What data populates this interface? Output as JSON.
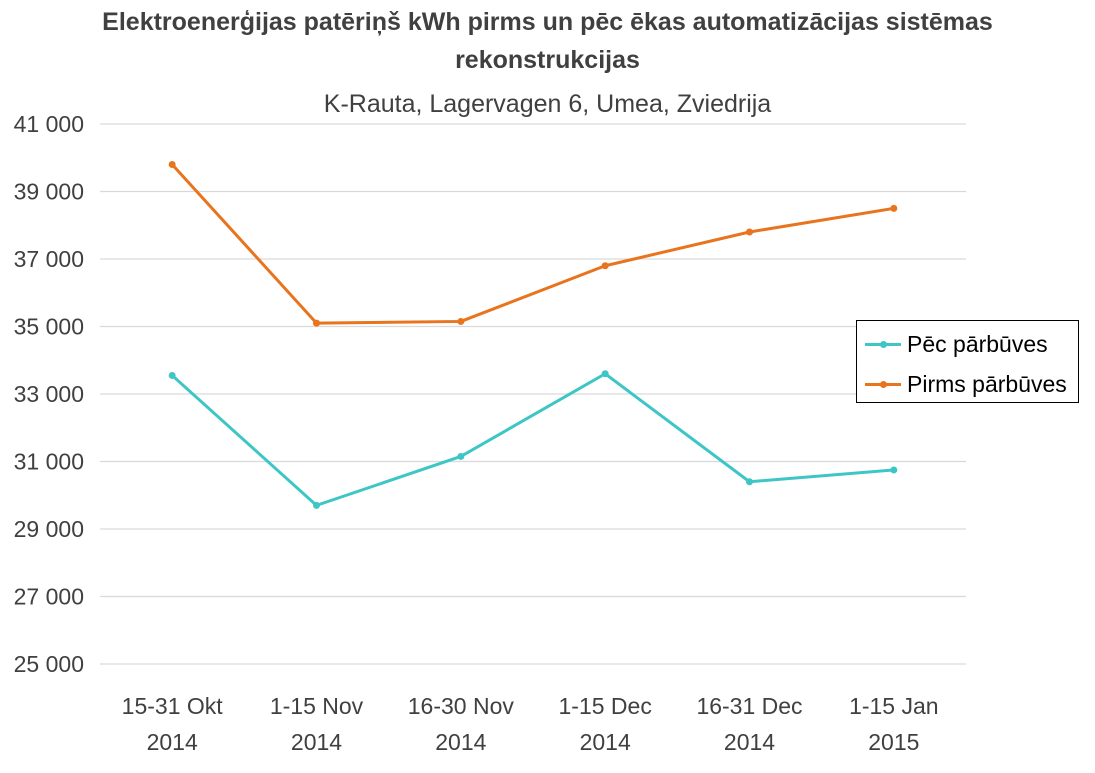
{
  "chart_data": {
    "type": "line",
    "title": "Elektroenerģijas patēriņš kWh pirms un pēc ēkas automatizācijas sistēmas rekonstrukcijas",
    "title_line1": "Elektroenerģijas patēriņš kWh pirms un pēc ēkas automatizācijas sistēmas",
    "title_line2": "rekonstrukcijas",
    "subtitle": "K-Rauta, Lagervagen 6, Umea, Zviedrija",
    "categories": [
      [
        "15-31 Okt",
        "2014"
      ],
      [
        "1-15 Nov",
        "2014"
      ],
      [
        "16-30 Nov",
        "2014"
      ],
      [
        "1-15 Dec",
        "2014"
      ],
      [
        "16-31 Dec",
        "2014"
      ],
      [
        "1-15 Jan",
        "2015"
      ]
    ],
    "ylim": [
      25000,
      41000
    ],
    "yticks": [
      25000,
      27000,
      29000,
      31000,
      33000,
      35000,
      37000,
      39000,
      41000
    ],
    "ytick_labels": [
      "25 000",
      "27 000",
      "29 000",
      "31 000",
      "33 000",
      "35 000",
      "37 000",
      "39 000",
      "41 000"
    ],
    "grid": true,
    "legend_position": "right",
    "series": [
      {
        "name": "Pēc pārbūves",
        "color": "#3ec6c6",
        "values": [
          33550,
          29700,
          31150,
          33600,
          30400,
          30750
        ]
      },
      {
        "name": "Pirms pārbūves",
        "color": "#e8741e",
        "values": [
          39800,
          35100,
          35150,
          36800,
          37800,
          38500
        ]
      }
    ]
  }
}
